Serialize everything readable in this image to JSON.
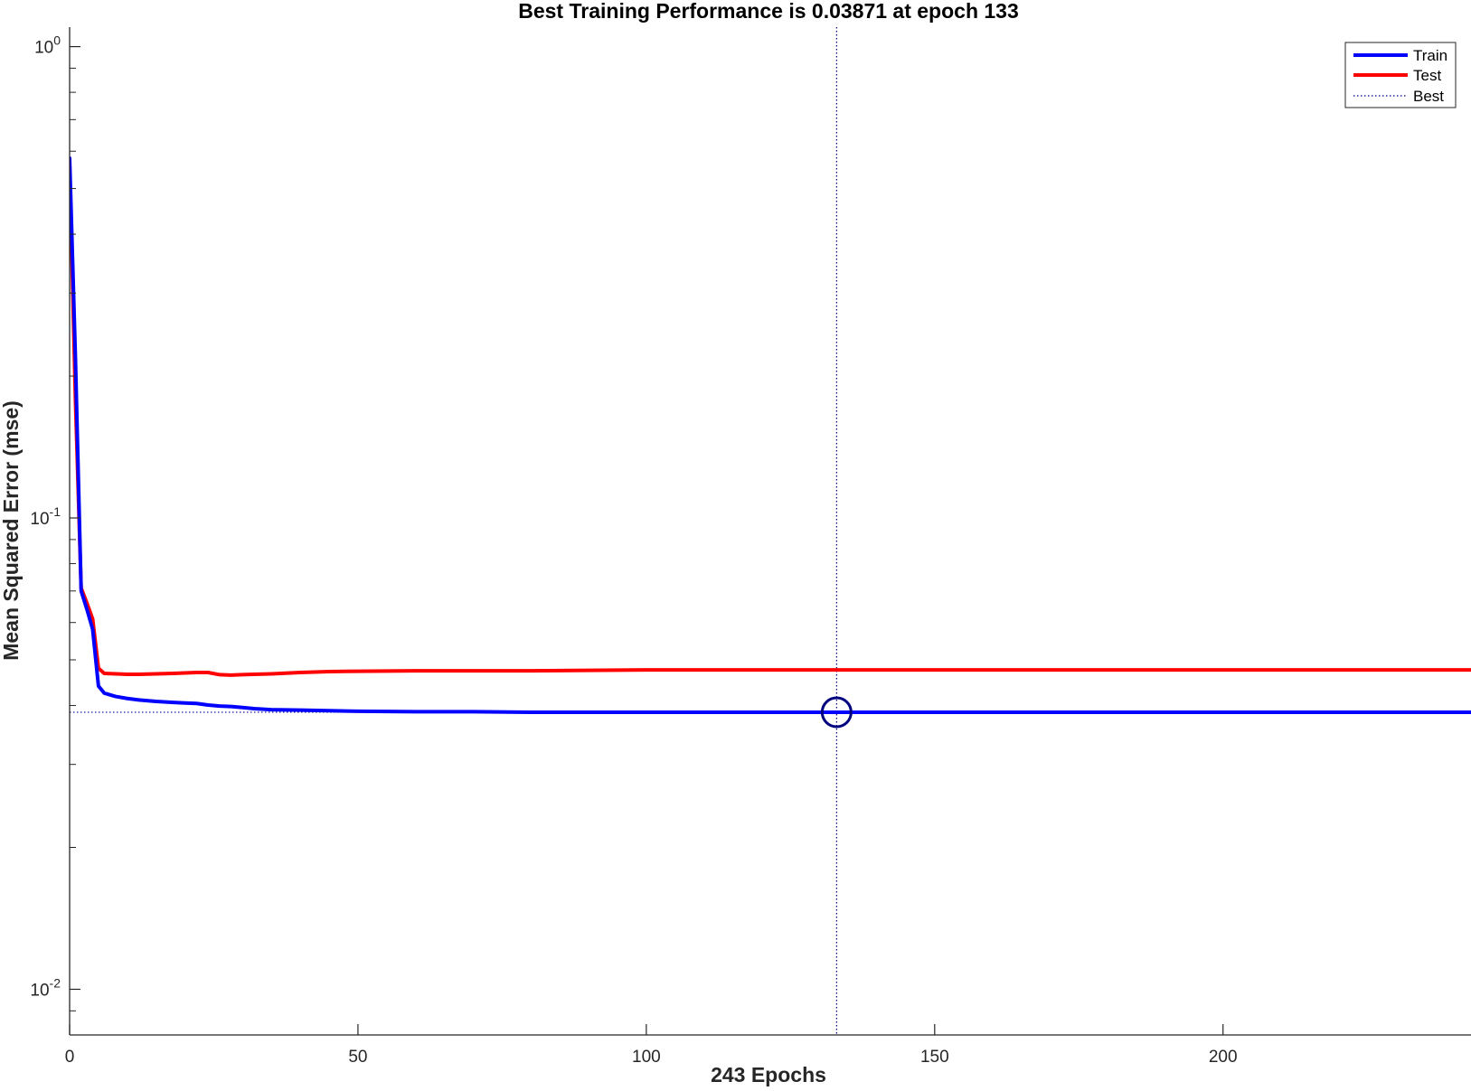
{
  "chart_data": {
    "type": "line",
    "title": "Best Training Performance is 0.03871 at epoch 133",
    "xlabel": "243 Epochs",
    "ylabel": "Mean Squared Error  (mse)",
    "xscale": "linear",
    "yscale": "log",
    "xlim": [
      0,
      243
    ],
    "ylim": [
      0.008,
      1.1
    ],
    "x_ticks": [
      {
        "value": 0,
        "label": "0"
      },
      {
        "value": 50,
        "label": "50"
      },
      {
        "value": 100,
        "label": "100"
      },
      {
        "value": 150,
        "label": "150"
      },
      {
        "value": 200,
        "label": "200"
      }
    ],
    "y_ticks": [
      {
        "value": 1,
        "base": "10",
        "exp": "0"
      },
      {
        "value": 0.1,
        "base": "10",
        "exp": "-1"
      },
      {
        "value": 0.01,
        "base": "10",
        "exp": "-2"
      }
    ],
    "grid": false,
    "legend": {
      "position": "top-right",
      "entries": [
        "Train",
        "Test",
        "Best"
      ]
    },
    "series": [
      {
        "name": "Train",
        "color": "#0000ff",
        "style": "solid",
        "x": [
          0,
          1,
          2,
          3,
          4,
          5,
          6,
          8,
          10,
          12,
          15,
          18,
          20,
          22,
          24,
          26,
          28,
          30,
          32,
          35,
          40,
          45,
          50,
          60,
          70,
          80,
          90,
          100,
          110,
          120,
          133,
          150,
          175,
          200,
          243
        ],
        "y": [
          0.58,
          0.22,
          0.07,
          0.064,
          0.058,
          0.044,
          0.0425,
          0.0418,
          0.0414,
          0.0411,
          0.0408,
          0.0406,
          0.0405,
          0.0404,
          0.0401,
          0.0399,
          0.0398,
          0.0396,
          0.0394,
          0.0392,
          0.0391,
          0.039,
          0.0389,
          0.0388,
          0.0388,
          0.0387,
          0.0387,
          0.0387,
          0.0387,
          0.0387,
          0.03871,
          0.0387,
          0.0387,
          0.0387,
          0.0387
        ]
      },
      {
        "name": "Test",
        "color": "#ff0000",
        "style": "solid",
        "x": [
          0,
          1,
          2,
          3,
          4,
          5,
          6,
          8,
          10,
          12,
          15,
          18,
          20,
          22,
          24,
          26,
          28,
          30,
          32,
          35,
          40,
          45,
          50,
          60,
          70,
          80,
          90,
          100,
          110,
          120,
          133,
          150,
          175,
          200,
          243
        ],
        "y": [
          0.56,
          0.18,
          0.071,
          0.066,
          0.061,
          0.048,
          0.0468,
          0.0467,
          0.0466,
          0.0466,
          0.0467,
          0.0468,
          0.0469,
          0.047,
          0.047,
          0.0465,
          0.0464,
          0.0465,
          0.0466,
          0.0467,
          0.047,
          0.0472,
          0.0473,
          0.0474,
          0.0474,
          0.0474,
          0.0475,
          0.0476,
          0.0476,
          0.0476,
          0.0476,
          0.0476,
          0.0476,
          0.0476,
          0.0476
        ]
      }
    ],
    "best": {
      "label": "Best",
      "epoch": 133,
      "value": 0.03871,
      "color": "#00007f",
      "style": "dotted"
    }
  }
}
